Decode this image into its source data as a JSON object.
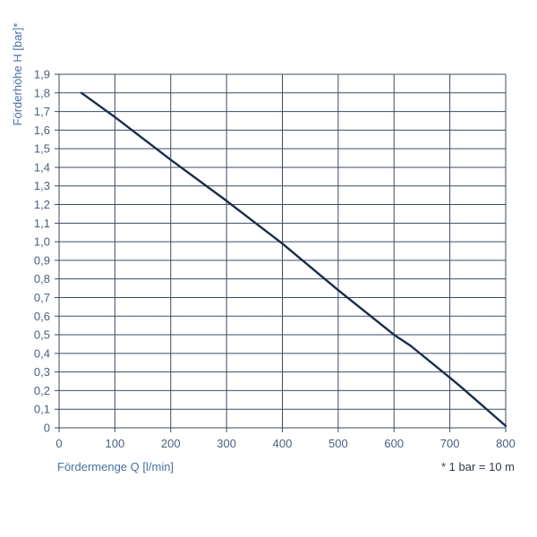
{
  "chart_data": {
    "type": "line",
    "xlabel": "Fördermenge Q [l/min]",
    "ylabel": "Förderhöhe H [bar]*",
    "note": "* 1 bar = 10 m",
    "xlim": [
      0,
      800
    ],
    "ylim": [
      0,
      1.9
    ],
    "x_ticks": [
      "0",
      "100",
      "200",
      "300",
      "400",
      "500",
      "600",
      "700",
      "800"
    ],
    "y_ticks": [
      "0",
      "0,1",
      "0,2",
      "0,3",
      "0,4",
      "0,5",
      "0,6",
      "0,7",
      "0,8",
      "0,9",
      "1,0",
      "1,1",
      "1,2",
      "1,3",
      "1,4",
      "1,5",
      "1,6",
      "1,7",
      "1,8",
      "1,9"
    ],
    "grid": true,
    "series": [
      {
        "color": "#1a2c4e",
        "x": [
          40,
          100,
          200,
          300,
          400,
          500,
          600,
          630,
          700,
          720,
          800
        ],
        "y": [
          1.8,
          1.67,
          1.44,
          1.22,
          0.99,
          0.74,
          0.5,
          0.44,
          0.27,
          0.22,
          0.01
        ]
      }
    ]
  }
}
